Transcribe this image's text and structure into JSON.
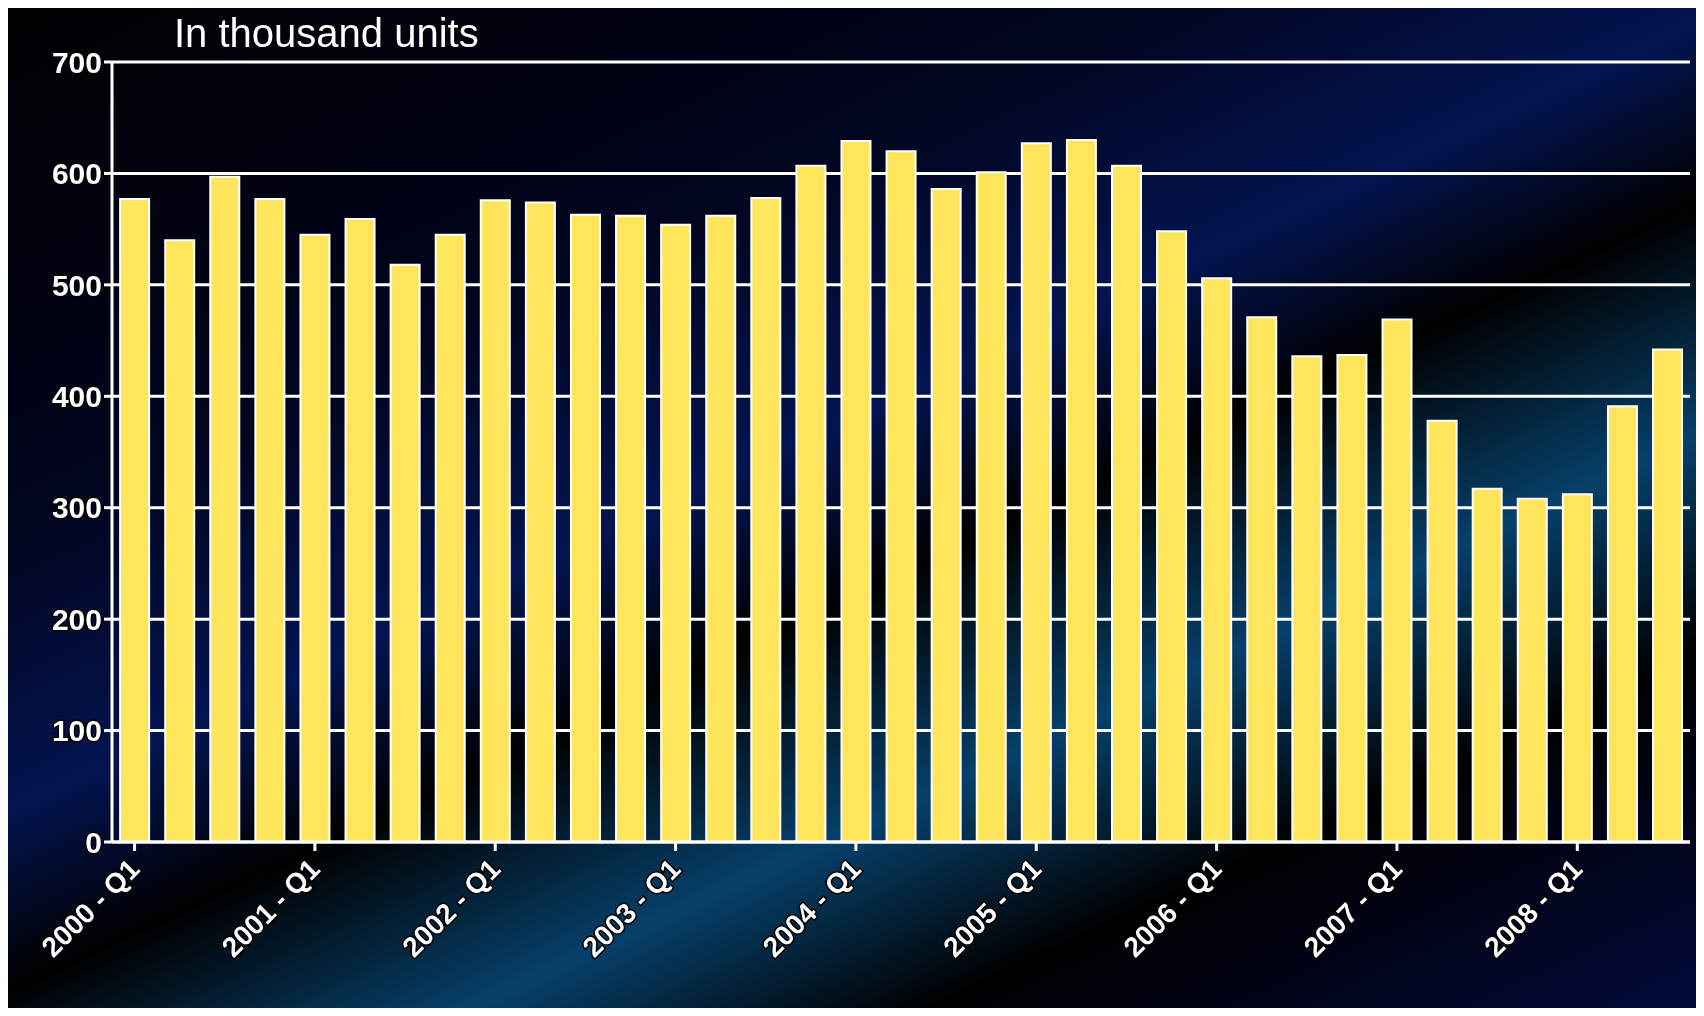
{
  "chart_data": {
    "type": "bar",
    "ylabel": "In thousand units",
    "categories": [
      "2000 - Q1",
      null,
      null,
      null,
      "2001 - Q1",
      null,
      null,
      null,
      "2002 - Q1",
      null,
      null,
      null,
      "2003 - Q1",
      null,
      null,
      null,
      "2004 - Q1",
      null,
      null,
      null,
      "2005 - Q1",
      null,
      null,
      null,
      "2006 - Q1",
      null,
      null,
      null,
      "2007 - Q1",
      null,
      null,
      null,
      "2008 - Q1",
      null,
      null
    ],
    "values": [
      577,
      540,
      597,
      577,
      545,
      559,
      518,
      545,
      576,
      574,
      563,
      562,
      554,
      562,
      578,
      607,
      629,
      620,
      586,
      601,
      627,
      630,
      607,
      548,
      506,
      471,
      436,
      437,
      469,
      378,
      317,
      308,
      312,
      391,
      442
    ],
    "color": "#ffe55c",
    "ylim": [
      0,
      700
    ],
    "yticks": [
      0,
      100,
      200,
      300,
      400,
      500,
      600,
      700
    ],
    "grid": "y"
  }
}
